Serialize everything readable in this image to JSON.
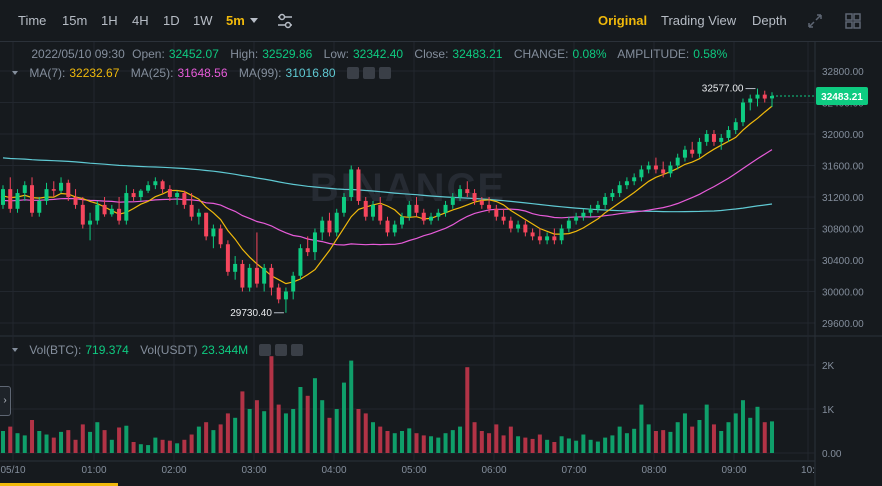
{
  "toolbar": {
    "intervals": [
      "Time",
      "15m",
      "1H",
      "4H",
      "1D",
      "1W"
    ],
    "active_interval": "5m",
    "views": [
      "Original",
      "Trading View",
      "Depth"
    ],
    "active_view": "Original"
  },
  "ohlc": {
    "date": "2022/05/10 09:30",
    "open_label": "Open:",
    "open": "32452.07",
    "high_label": "High:",
    "high": "32529.86",
    "low_label": "Low:",
    "low": "32342.40",
    "close_label": "Close:",
    "close": "32483.21",
    "change_label": "CHANGE:",
    "change": "0.08%",
    "amplitude_label": "AMPLITUDE:",
    "amplitude": "0.58%"
  },
  "ma": {
    "ma7_label": "MA(7):",
    "ma7": "32232.67",
    "ma25_label": "MA(25):",
    "ma25": "31648.56",
    "ma99_label": "MA(99):",
    "ma99": "31016.80"
  },
  "vol": {
    "btc_label": "Vol(BTC):",
    "btc": "719.374",
    "usdt_label": "Vol(USDT)",
    "usdt": "23.344M"
  },
  "watermark": "BINANCE",
  "colors": {
    "up": "#0ecb81",
    "down": "#f6465d",
    "up_vol": "#0f9f6a",
    "down_vol": "#b23346",
    "ma7": "#f0b90b",
    "ma25": "#e75bd9",
    "ma99": "#5fc9d3",
    "grid": "#22272e",
    "axis_text": "#848e9c",
    "last_price_bg": "#0ecb81"
  },
  "chart_data": {
    "type": "candlestick",
    "price_axis_ticks": [
      32800,
      32400,
      32000,
      31600,
      31200,
      30800,
      30400,
      30000,
      29600
    ],
    "price_axis_labels": [
      "32800.00",
      "32400.00",
      "32000.00",
      "31600.00",
      "31200.00",
      "30800.00",
      "30400.00",
      "30000.00",
      "29600.00"
    ],
    "volume_axis_labels": [
      "2K",
      "1K",
      "0.00"
    ],
    "volume_axis_ticks": [
      2000,
      1000,
      0
    ],
    "time_labels": [
      "05/10",
      "01:00",
      "02:00",
      "03:00",
      "04:00",
      "05:00",
      "06:00",
      "07:00",
      "08:00",
      "09:00",
      "10:"
    ],
    "last_price": "32483.21",
    "high_marker": "32577.00",
    "low_marker": "29730.40",
    "price_range": [
      29600,
      32900
    ],
    "candles": [
      [
        31100,
        31350,
        31050,
        31300,
        500
      ],
      [
        31300,
        31450,
        31000,
        31050,
        600
      ],
      [
        31050,
        31300,
        31000,
        31250,
        450
      ],
      [
        31250,
        31400,
        31150,
        31350,
        400
      ],
      [
        31350,
        31450,
        30950,
        31000,
        750
      ],
      [
        31000,
        31200,
        30950,
        31150,
        500
      ],
      [
        31150,
        31380,
        31100,
        31300,
        420
      ],
      [
        31300,
        31400,
        31200,
        31280,
        350
      ],
      [
        31280,
        31450,
        31250,
        31380,
        480
      ],
      [
        31380,
        31420,
        31150,
        31200,
        520
      ],
      [
        31200,
        31300,
        31050,
        31100,
        300
      ],
      [
        31100,
        31200,
        30800,
        30850,
        650
      ],
      [
        30850,
        31000,
        30650,
        30900,
        480
      ],
      [
        30900,
        31150,
        30850,
        31100,
        700
      ],
      [
        31100,
        31200,
        30950,
        30980,
        520
      ],
      [
        30980,
        31100,
        30950,
        31050,
        300
      ],
      [
        31050,
        31200,
        30850,
        30900,
        580
      ],
      [
        30900,
        31350,
        30850,
        31250,
        620
      ],
      [
        31250,
        31300,
        31150,
        31200,
        250
      ],
      [
        31200,
        31300,
        31150,
        31280,
        200
      ],
      [
        31280,
        31400,
        31250,
        31350,
        180
      ],
      [
        31350,
        31450,
        31300,
        31400,
        350
      ],
      [
        31400,
        31420,
        31250,
        31300,
        300
      ],
      [
        31300,
        31350,
        31150,
        31200,
        280
      ],
      [
        31200,
        31280,
        31100,
        31250,
        220
      ],
      [
        31250,
        31280,
        31050,
        31100,
        300
      ],
      [
        31100,
        31250,
        30900,
        30950,
        420
      ],
      [
        30950,
        31050,
        30850,
        31000,
        600
      ],
      [
        31000,
        31000,
        30650,
        30700,
        700
      ],
      [
        30700,
        30850,
        30550,
        30800,
        520
      ],
      [
        30800,
        30850,
        30550,
        30600,
        650
      ],
      [
        30600,
        30650,
        30200,
        30250,
        900
      ],
      [
        30250,
        30450,
        30150,
        30350,
        800
      ],
      [
        30350,
        30400,
        30000,
        30050,
        1400
      ],
      [
        30050,
        30350,
        30000,
        30300,
        1000
      ],
      [
        30300,
        30750,
        30050,
        30100,
        1200
      ],
      [
        30100,
        30350,
        30000,
        30300,
        950
      ],
      [
        30300,
        30350,
        29950,
        30050,
        2200
      ],
      [
        30050,
        30100,
        29850,
        29900,
        1100
      ],
      [
        29900,
        30050,
        29730,
        30000,
        900
      ],
      [
        30000,
        30250,
        29900,
        30200,
        1000
      ],
      [
        30200,
        30600,
        30150,
        30550,
        1500
      ],
      [
        30550,
        30700,
        30450,
        30500,
        1300
      ],
      [
        30500,
        30800,
        30400,
        30750,
        1700
      ],
      [
        30750,
        30950,
        30650,
        30900,
        1200
      ],
      [
        30900,
        31000,
        30700,
        30750,
        800
      ],
      [
        30750,
        31050,
        30700,
        31000,
        1000
      ],
      [
        31000,
        31250,
        30950,
        31200,
        1600
      ],
      [
        31200,
        31600,
        31150,
        31550,
        2100
      ],
      [
        31550,
        31580,
        31100,
        31150,
        1000
      ],
      [
        31150,
        31200,
        30900,
        30950,
        900
      ],
      [
        30950,
        31150,
        30900,
        31100,
        700
      ],
      [
        31100,
        31200,
        30850,
        30900,
        600
      ],
      [
        30900,
        30950,
        30700,
        30750,
        500
      ],
      [
        30750,
        30900,
        30700,
        30850,
        450
      ],
      [
        30850,
        31000,
        30800,
        30950,
        500
      ],
      [
        30950,
        31150,
        30900,
        31100,
        560
      ],
      [
        31100,
        31200,
        30950,
        31000,
        450
      ],
      [
        31000,
        31050,
        30850,
        30900,
        400
      ],
      [
        30900,
        31000,
        30850,
        30950,
        380
      ],
      [
        30950,
        31050,
        30900,
        31000,
        350
      ],
      [
        31000,
        31150,
        30950,
        31100,
        450
      ],
      [
        31100,
        31250,
        31050,
        31200,
        520
      ],
      [
        31200,
        31350,
        31150,
        31300,
        600
      ],
      [
        31300,
        31400,
        31200,
        31250,
        1950
      ],
      [
        31250,
        31300,
        31100,
        31150,
        700
      ],
      [
        31150,
        31200,
        31050,
        31100,
        500
      ],
      [
        31100,
        31200,
        31000,
        31050,
        450
      ],
      [
        31050,
        31100,
        30900,
        30950,
        650
      ],
      [
        30950,
        31050,
        30850,
        30900,
        400
      ],
      [
        30900,
        30950,
        30750,
        30800,
        600
      ],
      [
        30800,
        30900,
        30750,
        30850,
        380
      ],
      [
        30850,
        30900,
        30700,
        30750,
        350
      ],
      [
        30750,
        30800,
        30650,
        30700,
        320
      ],
      [
        30700,
        30800,
        30600,
        30650,
        420
      ],
      [
        30650,
        30750,
        30600,
        30700,
        300
      ],
      [
        30700,
        30800,
        30600,
        30650,
        250
      ],
      [
        30650,
        30850,
        30600,
        30800,
        380
      ],
      [
        30800,
        30950,
        30750,
        30900,
        330
      ],
      [
        30900,
        31000,
        30850,
        30950,
        280
      ],
      [
        30950,
        31050,
        30900,
        31000,
        420
      ],
      [
        31000,
        31100,
        30950,
        31050,
        300
      ],
      [
        31050,
        31150,
        31000,
        31100,
        260
      ],
      [
        31100,
        31250,
        31050,
        31200,
        350
      ],
      [
        31200,
        31300,
        31150,
        31250,
        400
      ],
      [
        31250,
        31400,
        31200,
        31350,
        600
      ],
      [
        31350,
        31450,
        31300,
        31400,
        450
      ],
      [
        31400,
        31500,
        31350,
        31450,
        550
      ],
      [
        31450,
        31600,
        31400,
        31550,
        1100
      ],
      [
        31550,
        31650,
        31500,
        31600,
        650
      ],
      [
        31600,
        31700,
        31500,
        31550,
        500
      ],
      [
        31550,
        31650,
        31450,
        31500,
        520
      ],
      [
        31500,
        31650,
        31450,
        31600,
        480
      ],
      [
        31600,
        31750,
        31550,
        31700,
        700
      ],
      [
        31700,
        31850,
        31650,
        31800,
        900
      ],
      [
        31800,
        31900,
        31700,
        31750,
        600
      ],
      [
        31750,
        31950,
        31700,
        31900,
        750
      ],
      [
        31900,
        32050,
        31850,
        32000,
        1100
      ],
      [
        32000,
        32050,
        31850,
        31900,
        650
      ],
      [
        31900,
        32000,
        31800,
        31950,
        500
      ],
      [
        31950,
        32100,
        31900,
        32050,
        700
      ],
      [
        32050,
        32200,
        32000,
        32150,
        900
      ],
      [
        32150,
        32450,
        32100,
        32400,
        1200
      ],
      [
        32400,
        32500,
        32300,
        32450,
        800
      ],
      [
        32450,
        32577,
        32350,
        32500,
        1050
      ],
      [
        32500,
        32550,
        32400,
        32450,
        700
      ],
      [
        32452.07,
        32529.86,
        32342.4,
        32483.21,
        719
      ]
    ]
  }
}
